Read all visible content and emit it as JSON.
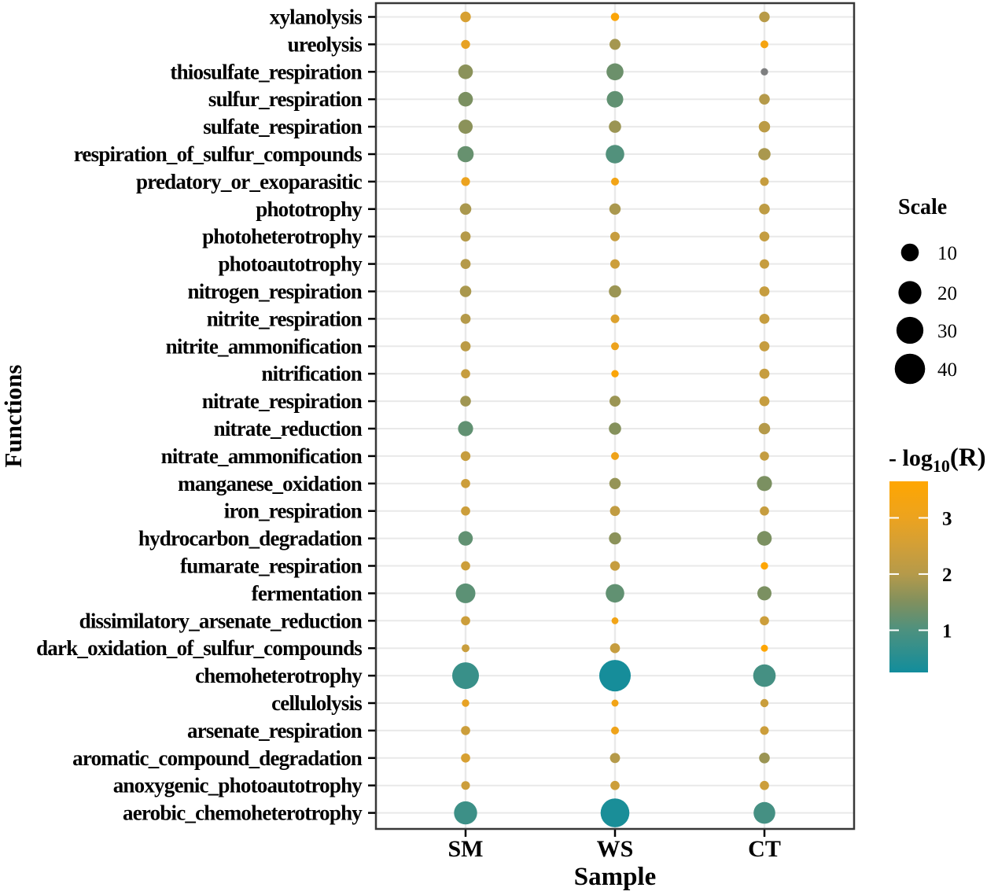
{
  "chart_data": {
    "type": "scatter",
    "subtype": "bubble-matrix",
    "xlabel": "Sample",
    "ylabel": "Functions",
    "samples": [
      "SM",
      "WS",
      "CT"
    ],
    "rows": [
      {
        "name": "xylanolysis",
        "sm": [
          1.8,
          2.6
        ],
        "ws": [
          0.62,
          3.5
        ],
        "ct": [
          1.8,
          2.05
        ]
      },
      {
        "name": "ureolysis",
        "sm": [
          0.9,
          2.9
        ],
        "ws": [
          2.1,
          1.85
        ],
        "ct": [
          0.45,
          3.3
        ]
      },
      {
        "name": "thiosulfate_respiration",
        "sm": [
          5.6,
          1.6
        ],
        "ws": [
          8.8,
          1.3
        ],
        "ct": [
          0.31,
          null
        ]
      },
      {
        "name": "sulfur_respiration",
        "sm": [
          5.6,
          1.45
        ],
        "ws": [
          8.1,
          1.2
        ],
        "ct": [
          1.9,
          2.0
        ]
      },
      {
        "name": "sulfate_respiration",
        "sm": [
          5.1,
          1.6
        ],
        "ws": [
          3.16,
          1.75
        ],
        "ct": [
          2.4,
          2.1
        ]
      },
      {
        "name": "respiration_of_sulfur_compounds",
        "sm": [
          7.65,
          1.25
        ],
        "ws": [
          11.3,
          1.05
        ],
        "ct": [
          3.16,
          1.9
        ]
      },
      {
        "name": "predatory_or_exoparasitic",
        "sm": [
          0.83,
          3.0
        ],
        "ws": [
          0.45,
          3.2
        ],
        "ct": [
          0.76,
          2.3
        ]
      },
      {
        "name": "phototrophy",
        "sm": [
          2.5,
          1.9
        ],
        "ws": [
          2.4,
          1.9
        ],
        "ct": [
          1.9,
          2.15
        ]
      },
      {
        "name": "photoheterotrophy",
        "sm": [
          1.5,
          2.0
        ],
        "ws": [
          1.14,
          2.3
        ],
        "ct": [
          1.4,
          2.25
        ]
      },
      {
        "name": "photoautotrophy",
        "sm": [
          1.5,
          2.0
        ],
        "ws": [
          1.14,
          2.4
        ],
        "ct": [
          1.14,
          2.3
        ]
      },
      {
        "name": "nitrogen_respiration",
        "sm": [
          2.5,
          1.9
        ],
        "ws": [
          3.16,
          1.75
        ],
        "ct": [
          1.5,
          2.3
        ]
      },
      {
        "name": "nitrite_respiration",
        "sm": [
          1.5,
          2.0
        ],
        "ws": [
          0.76,
          2.7
        ],
        "ct": [
          1.5,
          2.3
        ]
      },
      {
        "name": "nitrite_ammonification",
        "sm": [
          1.5,
          2.1
        ],
        "ws": [
          0.45,
          3.05
        ],
        "ct": [
          1.5,
          2.3
        ]
      },
      {
        "name": "nitrification",
        "sm": [
          1.0,
          2.3
        ],
        "ws": [
          0.31,
          3.5
        ],
        "ct": [
          1.5,
          2.3
        ]
      },
      {
        "name": "nitrate_respiration",
        "sm": [
          1.9,
          1.8
        ],
        "ws": [
          2.1,
          1.75
        ],
        "ct": [
          1.5,
          2.3
        ]
      },
      {
        "name": "nitrate_reduction",
        "sm": [
          6.2,
          1.2
        ],
        "ws": [
          3.16,
          1.55
        ],
        "ct": [
          2.5,
          2.0
        ]
      },
      {
        "name": "nitrate_ammonification",
        "sm": [
          1.3,
          2.3
        ],
        "ws": [
          0.45,
          3.1
        ],
        "ct": [
          1.0,
          2.25
        ]
      },
      {
        "name": "manganese_oxidation",
        "sm": [
          1.0,
          2.4
        ],
        "ws": [
          2.4,
          1.7
        ],
        "ct": [
          6.2,
          1.45
        ]
      },
      {
        "name": "iron_respiration",
        "sm": [
          1.0,
          2.4
        ],
        "ws": [
          1.5,
          2.2
        ],
        "ct": [
          1.0,
          2.3
        ]
      },
      {
        "name": "hydrocarbon_degradation",
        "sm": [
          5.4,
          1.2
        ],
        "ws": [
          3.0,
          1.6
        ],
        "ct": [
          5.6,
          1.45
        ]
      },
      {
        "name": "fumarate_respiration",
        "sm": [
          1.0,
          2.4
        ],
        "ws": [
          1.3,
          2.3
        ],
        "ct": [
          0.31,
          3.6
        ]
      },
      {
        "name": "fermentation",
        "sm": [
          13.2,
          1.15
        ],
        "ws": [
          11.3,
          1.2
        ],
        "ct": [
          5.1,
          1.45
        ]
      },
      {
        "name": "dissimilatory_arsenate_reduction",
        "sm": [
          1.0,
          2.4
        ],
        "ws": [
          0.19,
          3.2
        ],
        "ct": [
          1.0,
          2.4
        ]
      },
      {
        "name": "dark_oxidation_of_sulfur_compounds",
        "sm": [
          0.45,
          2.35
        ],
        "ws": [
          1.4,
          2.3
        ],
        "ct": [
          0.22,
          3.6
        ]
      },
      {
        "name": "chemoheterotrophy",
        "sm": [
          29.3,
          0.75
        ],
        "ws": [
          43.6,
          0.3
        ],
        "ct": [
          18.9,
          0.9
        ]
      },
      {
        "name": "cellulolysis",
        "sm": [
          0.31,
          2.9
        ],
        "ws": [
          0.22,
          3.2
        ],
        "ct": [
          0.56,
          2.35
        ]
      },
      {
        "name": "arsenate_respiration",
        "sm": [
          1.0,
          2.4
        ],
        "ws": [
          0.45,
          3.1
        ],
        "ct": [
          0.76,
          2.4
        ]
      },
      {
        "name": "aromatic_compound_degradation",
        "sm": [
          1.0,
          2.6
        ],
        "ws": [
          1.5,
          2.0
        ],
        "ct": [
          1.9,
          1.75
        ]
      },
      {
        "name": "anoxygenic_photoautotrophy",
        "sm": [
          0.76,
          2.4
        ],
        "ws": [
          1.0,
          2.4
        ],
        "ct": [
          1.0,
          2.4
        ]
      },
      {
        "name": "aerobic_chemoheterotrophy",
        "sm": [
          20.3,
          0.8
        ],
        "ws": [
          35.2,
          0.35
        ],
        "ct": [
          17.2,
          0.9
        ]
      }
    ],
    "point_encoding": {
      "value_order": [
        "size_scale",
        "neg_log10_R"
      ],
      "na_color": "#7E7F80"
    },
    "size_legend": {
      "title": "Scale",
      "breaks": [
        10,
        20,
        30,
        40
      ],
      "key_color": "#000000"
    },
    "color_legend": {
      "title_prefix": "- log",
      "title_sub": "10",
      "title_suffix": "(R)",
      "ticks": [
        3,
        2,
        1
      ],
      "domain": [
        0.25,
        3.65
      ],
      "gradient_stops": [
        [
          0.25,
          "#128D9C"
        ],
        [
          1.0,
          "#4D917F"
        ],
        [
          1.5,
          "#80905E"
        ],
        [
          2.0,
          "#B59A4A"
        ],
        [
          2.5,
          "#D29F37"
        ],
        [
          3.0,
          "#ECA31F"
        ],
        [
          3.65,
          "#FFA601"
        ]
      ]
    },
    "grid": {
      "color": "#E9E9E9",
      "background": "#FFFFFF",
      "border_color": "#383838"
    }
  }
}
